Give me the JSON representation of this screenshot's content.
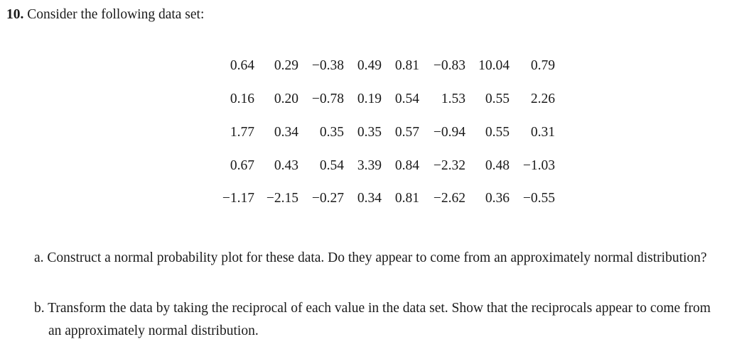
{
  "problem": {
    "number": "10.",
    "prompt": "Consider the following data set:"
  },
  "data_rows": [
    [
      "0.64",
      "0.29",
      "−0.38",
      "0.49",
      "0.81",
      "−0.83",
      "10.04",
      "0.79"
    ],
    [
      "0.16",
      "0.20",
      "−0.78",
      "0.19",
      "0.54",
      "1.53",
      "0.55",
      "2.26"
    ],
    [
      "1.77",
      "0.34",
      "0.35",
      "0.35",
      "0.57",
      "−0.94",
      "0.55",
      "0.31"
    ],
    [
      "0.67",
      "0.43",
      "0.54",
      "3.39",
      "0.84",
      "−2.32",
      "0.48",
      "−1.03"
    ],
    [
      "−1.17",
      "−2.15",
      "−0.27",
      "0.34",
      "0.81",
      "−2.62",
      "0.36",
      "−0.55"
    ]
  ],
  "parts": [
    {
      "label": "a.",
      "text": "Construct a normal probability plot for these data. Do they appear to come from an approximately normal distribution?"
    },
    {
      "label": "b.",
      "text": "Transform the data by taking the reciprocal of each value in the data set. Show that the reciprocals appear to come from an approximately normal distribution."
    }
  ]
}
